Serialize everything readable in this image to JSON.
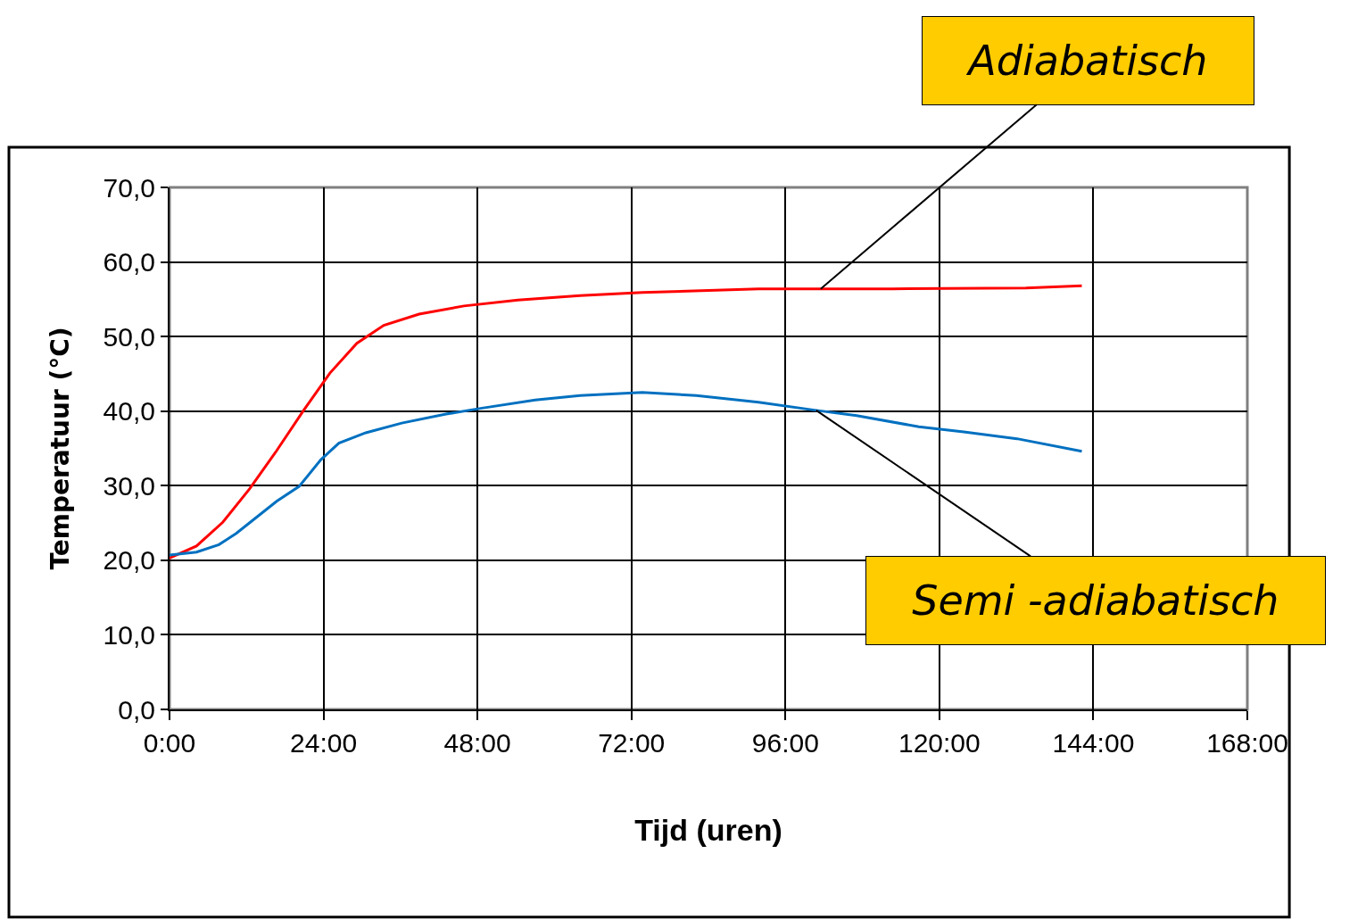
{
  "chart_data": {
    "type": "line",
    "xlabel": "Tijd (uren)",
    "ylabel": "Temperatuur (°C)",
    "xlim": [
      0,
      168
    ],
    "xticks": [
      {
        "value": 0,
        "label": "0:00"
      },
      {
        "value": 24,
        "label": "24:00"
      },
      {
        "value": 48,
        "label": "48:00"
      },
      {
        "value": 72,
        "label": "72:00"
      },
      {
        "value": 96,
        "label": "96:00"
      },
      {
        "value": 120,
        "label": "120:00"
      },
      {
        "value": 144,
        "label": "144:00"
      },
      {
        "value": 168,
        "label": "168:00"
      }
    ],
    "ylim": [
      0,
      70
    ],
    "yticks": [
      {
        "value": 0,
        "label": "0,0"
      },
      {
        "value": 10,
        "label": "10,0"
      },
      {
        "value": 20,
        "label": "20,0"
      },
      {
        "value": 30,
        "label": "30,0"
      },
      {
        "value": 40,
        "label": "40,0"
      },
      {
        "value": 50,
        "label": "50,0"
      },
      {
        "value": 60,
        "label": "60,0"
      },
      {
        "value": 70,
        "label": "70,0"
      }
    ],
    "grid": true,
    "series": [
      {
        "color": "#ff0000",
        "x": [
          0,
          4.2,
          8.3,
          12.5,
          16.7,
          20.9,
          25,
          29.2,
          33.4,
          38.9,
          45.9,
          54.3,
          64,
          73.7,
          91.8,
          112.7,
          133.5,
          142.2
        ],
        "values": [
          20.3,
          21.9,
          25.1,
          29.6,
          34.7,
          40.1,
          45.1,
          49.1,
          51.5,
          53,
          54.1,
          54.9,
          55.5,
          55.9,
          56.4,
          56.4,
          56.5,
          56.8
        ]
      },
      {
        "color": "#0070c0",
        "x": [
          0,
          4.2,
          7.7,
          10.4,
          13.9,
          16.7,
          20.2,
          23.6,
          26.4,
          30.6,
          36.2,
          43.1,
          48.7,
          57,
          64,
          73.7,
          82.1,
          91.8,
          100.8,
          107.1,
          116.8,
          123.8,
          132.1,
          142.2
        ],
        "values": [
          20.7,
          21.1,
          22.1,
          23.6,
          26,
          27.9,
          29.9,
          33.5,
          35.7,
          37.1,
          38.4,
          39.6,
          40.4,
          41.5,
          42.1,
          42.5,
          42.1,
          41.2,
          40.1,
          39.4,
          37.9,
          37.2,
          36.3,
          34.6
        ]
      }
    ],
    "annotations": [
      {
        "text": "Adiabatisch",
        "x": 101.5,
        "y": 56.4
      },
      {
        "text": "Semi -adiabatisch",
        "x": 100.8,
        "y": 40.1
      }
    ]
  }
}
